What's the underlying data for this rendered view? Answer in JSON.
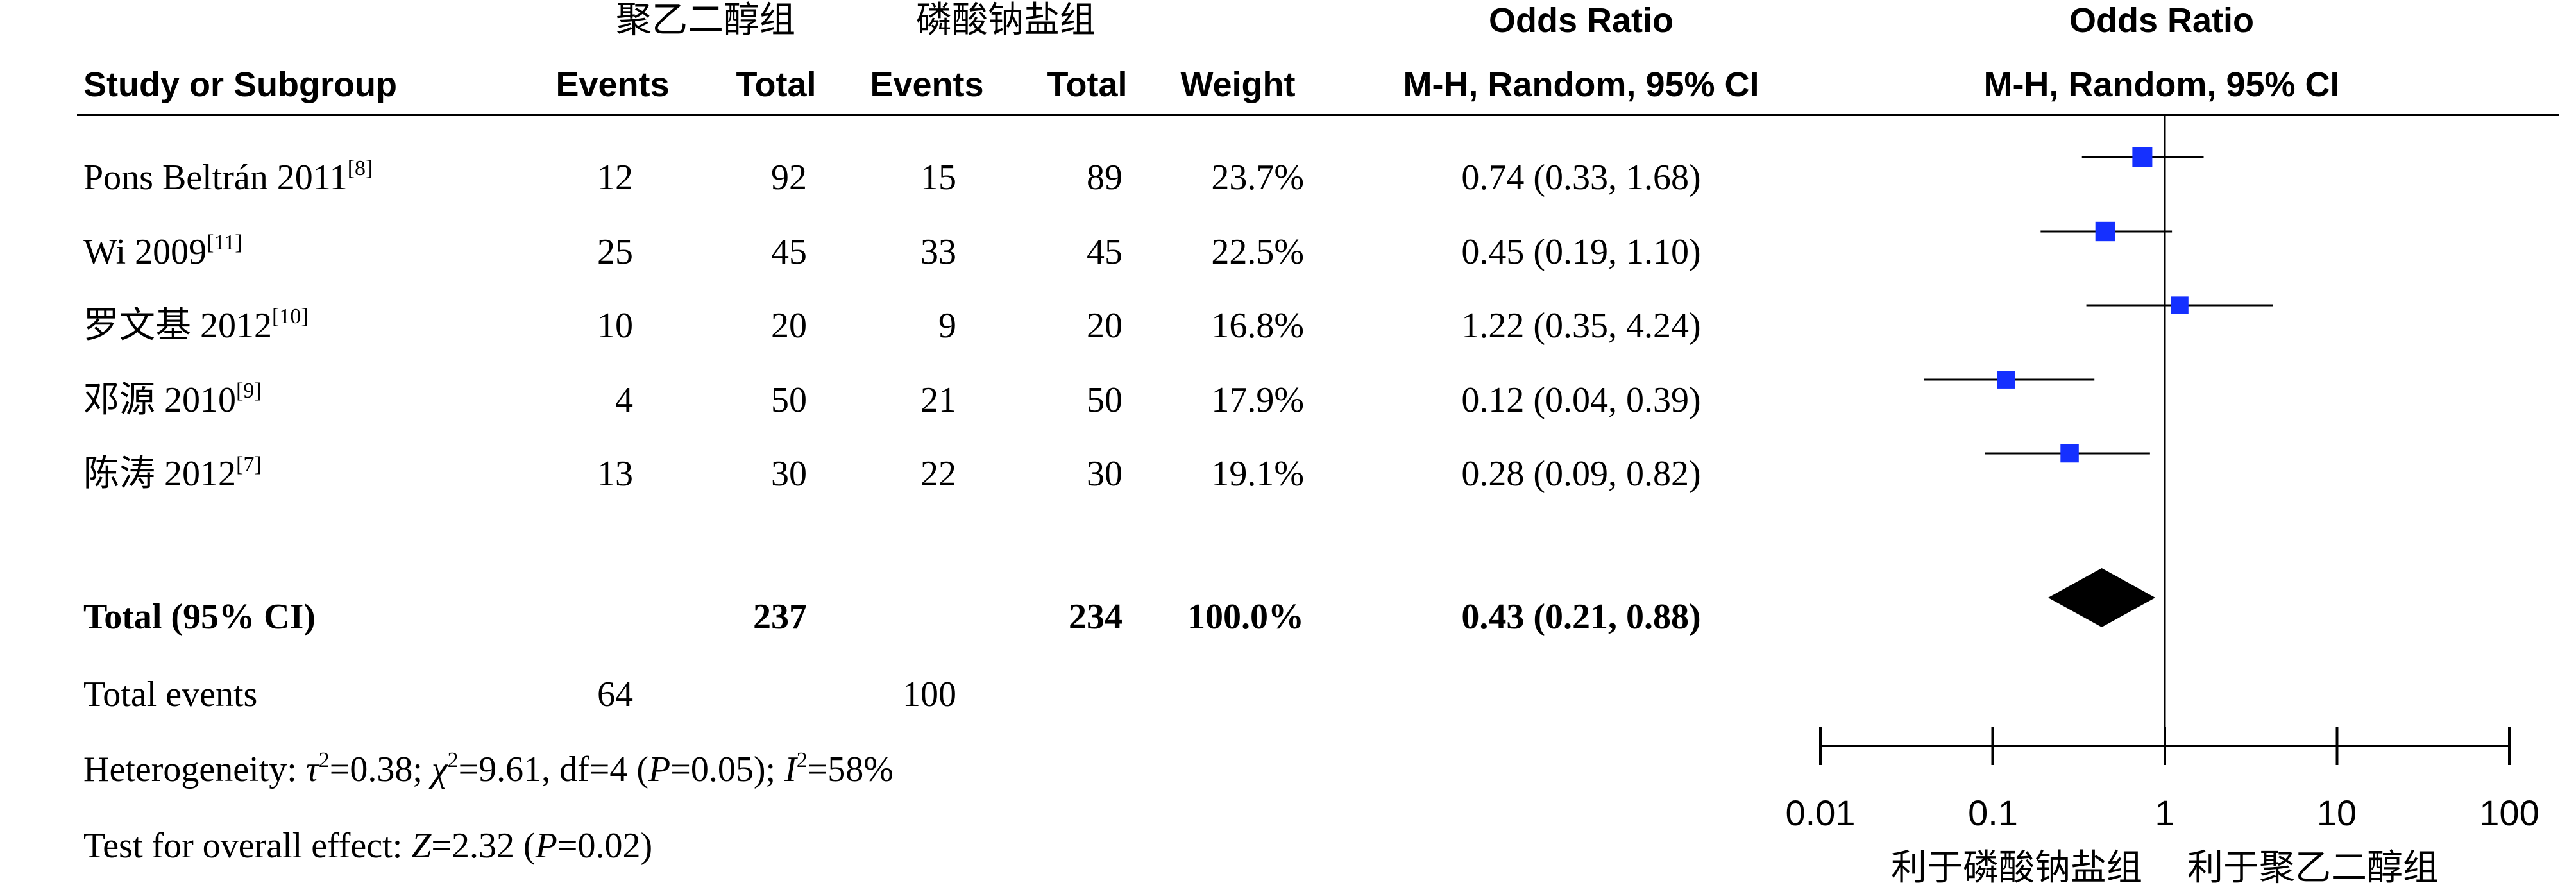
{
  "header": {
    "group1": "聚乙二醇组",
    "group2": "磷酸钠盐组",
    "or_title": "Odds Ratio",
    "or_title_plot": "Odds Ratio",
    "col_study": "Study or Subgroup",
    "col_events1": "Events",
    "col_total1": "Total",
    "col_events2": "Events",
    "col_total2": "Total",
    "col_weight": "Weight",
    "col_method": "M-H, Random, 95% CI",
    "col_method_plot": "M-H, Random, 95% CI"
  },
  "studies": [
    {
      "name": "Pons Beltrán 2011",
      "ref": "[8]",
      "e1": "12",
      "n1": "92",
      "e2": "15",
      "n2": "89",
      "weight": "23.7%",
      "ci_text": "0.74 (0.33, 1.68)"
    },
    {
      "name": "Wi 2009",
      "ref": "[11]",
      "e1": "25",
      "n1": "45",
      "e2": "33",
      "n2": "45",
      "weight": "22.5%",
      "ci_text": "0.45 (0.19, 1.10)"
    },
    {
      "name": "罗文基 2012",
      "ref": "[10]",
      "e1": "10",
      "n1": "20",
      "e2": "9",
      "n2": "20",
      "weight": "16.8%",
      "ci_text": "1.22 (0.35, 4.24)"
    },
    {
      "name": "邓源 2010",
      "ref": "[9]",
      "e1": "4",
      "n1": "50",
      "e2": "21",
      "n2": "50",
      "weight": "17.9%",
      "ci_text": "0.12 (0.04, 0.39)"
    },
    {
      "name": "陈涛 2012",
      "ref": "[7]",
      "e1": "13",
      "n1": "30",
      "e2": "22",
      "n2": "30",
      "weight": "19.1%",
      "ci_text": "0.28 (0.09, 0.82)"
    }
  ],
  "total": {
    "label": "Total (95% CI)",
    "n1": "237",
    "n2": "234",
    "weight": "100.0%",
    "ci_text": "0.43 (0.21, 0.88)"
  },
  "total_events": {
    "label": "Total events",
    "e1": "64",
    "e2": "100"
  },
  "heterogeneity": {
    "prefix": "Heterogeneity: ",
    "tau_sym": "τ",
    "tau_exp": "2",
    "tau_val": "=0.38; ",
    "chi_sym": "χ",
    "chi_exp": "2",
    "chi_val": "=9.61, df=4 (",
    "p_sym": "P",
    "p_val": "=0.05); ",
    "i_sym": "I",
    "i_exp": "2",
    "i_val": "=58%"
  },
  "overall_effect": {
    "prefix": "Test for overall effect: ",
    "z_sym": "Z",
    "z_val": "=2.32 (",
    "p_sym": "P",
    "p_val": "=0.02)"
  },
  "axis": {
    "tick_labels": [
      "0.01",
      "0.1",
      "1",
      "10",
      "100"
    ],
    "favours_left": "利于磷酸钠盐组",
    "favours_right": "利于聚乙二醇组"
  },
  "colors": {
    "marker": "#1530ff",
    "line": "#000000",
    "diamond": "#000000"
  },
  "chart_data": {
    "type": "forest",
    "title": "Odds Ratio",
    "xlabel": "M-H, Random, 95% CI",
    "x_scale": "log",
    "xlim": [
      0.01,
      100
    ],
    "ticks": [
      0.01,
      0.1,
      1,
      10,
      100
    ],
    "null_line": 1,
    "studies": [
      {
        "name": "Pons Beltrán 2011",
        "or": 0.74,
        "lower": 0.33,
        "upper": 1.68,
        "weight": 23.7
      },
      {
        "name": "Wi 2009",
        "or": 0.45,
        "lower": 0.19,
        "upper": 1.1,
        "weight": 22.5
      },
      {
        "name": "罗文基 2012",
        "or": 1.22,
        "lower": 0.35,
        "upper": 4.24,
        "weight": 16.8
      },
      {
        "name": "邓源 2010",
        "or": 0.12,
        "lower": 0.04,
        "upper": 0.39,
        "weight": 17.9
      },
      {
        "name": "陈涛 2012",
        "or": 0.28,
        "lower": 0.09,
        "upper": 0.82,
        "weight": 19.1
      }
    ],
    "pooled": {
      "or": 0.43,
      "lower": 0.21,
      "upper": 0.88
    }
  }
}
